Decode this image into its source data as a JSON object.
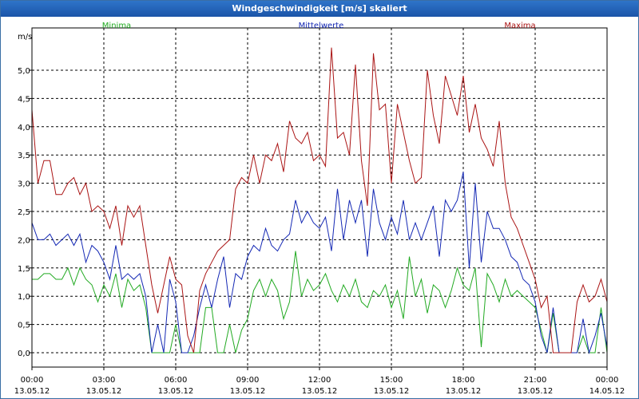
{
  "window": {
    "title": "Windgeschwindigkeit [m/s] skaliert"
  },
  "chart_data": {
    "type": "line",
    "title": "Windgeschwindigkeit [m/s] skaliert",
    "ylabel": "m/s",
    "xlabel": "",
    "ylim": [
      -0.25,
      5.9
    ],
    "xlim": [
      0,
      24
    ],
    "grid": true,
    "y_ticks": [
      {
        "v": 0,
        "label": "0,0"
      },
      {
        "v": 0.5,
        "label": "0,5"
      },
      {
        "v": 1,
        "label": "1,0"
      },
      {
        "v": 1.5,
        "label": "1,5"
      },
      {
        "v": 2,
        "label": "2,0"
      },
      {
        "v": 2.5,
        "label": "2,5"
      },
      {
        "v": 3,
        "label": "3,0"
      },
      {
        "v": 3.5,
        "label": "3,5"
      },
      {
        "v": 4,
        "label": "4,0"
      },
      {
        "v": 4.5,
        "label": "4,5"
      },
      {
        "v": 5,
        "label": "5,0"
      }
    ],
    "x_ticks": [
      {
        "h": 0,
        "time": "00:00",
        "date": "13.05.12"
      },
      {
        "h": 3,
        "time": "03:00",
        "date": "13.05.12"
      },
      {
        "h": 6,
        "time": "06:00",
        "date": "13.05.12"
      },
      {
        "h": 9,
        "time": "09:00",
        "date": "13.05.12"
      },
      {
        "h": 12,
        "time": "12:00",
        "date": "13.05.12"
      },
      {
        "h": 15,
        "time": "15:00",
        "date": "13.05.12"
      },
      {
        "h": 18,
        "time": "18:00",
        "date": "13.05.12"
      },
      {
        "h": 21,
        "time": "21:00",
        "date": "13.05.12"
      },
      {
        "h": 24,
        "time": "00:00",
        "date": "14.05.12"
      }
    ],
    "series": [
      {
        "name": "Minima",
        "color": "#22aa22",
        "points": [
          [
            0,
            1.3
          ],
          [
            0.25,
            1.3
          ],
          [
            0.5,
            1.4
          ],
          [
            0.75,
            1.4
          ],
          [
            1,
            1.3
          ],
          [
            1.25,
            1.3
          ],
          [
            1.5,
            1.5
          ],
          [
            1.75,
            1.2
          ],
          [
            2,
            1.5
          ],
          [
            2.25,
            1.3
          ],
          [
            2.5,
            1.2
          ],
          [
            2.75,
            0.9
          ],
          [
            3,
            1.2
          ],
          [
            3.25,
            1.0
          ],
          [
            3.5,
            1.4
          ],
          [
            3.75,
            0.8
          ],
          [
            4,
            1.3
          ],
          [
            4.25,
            1.1
          ],
          [
            4.5,
            1.2
          ],
          [
            4.75,
            0.8
          ],
          [
            5,
            0.0
          ],
          [
            5.25,
            0.0
          ],
          [
            5.5,
            0.0
          ],
          [
            5.75,
            0.0
          ],
          [
            6,
            0.5
          ],
          [
            6.25,
            0.0
          ],
          [
            6.5,
            0.0
          ],
          [
            6.75,
            0.0
          ],
          [
            7,
            0.0
          ],
          [
            7.25,
            0.8
          ],
          [
            7.5,
            0.8
          ],
          [
            7.75,
            0.0
          ],
          [
            8,
            0.0
          ],
          [
            8.25,
            0.5
          ],
          [
            8.5,
            0.0
          ],
          [
            8.75,
            0.4
          ],
          [
            9,
            0.6
          ],
          [
            9.25,
            1.1
          ],
          [
            9.5,
            1.3
          ],
          [
            9.75,
            1.0
          ],
          [
            10,
            1.3
          ],
          [
            10.25,
            1.1
          ],
          [
            10.5,
            0.6
          ],
          [
            10.75,
            0.9
          ],
          [
            11,
            1.8
          ],
          [
            11.25,
            1.0
          ],
          [
            11.5,
            1.3
          ],
          [
            11.75,
            1.1
          ],
          [
            12,
            1.2
          ],
          [
            12.25,
            1.4
          ],
          [
            12.5,
            1.1
          ],
          [
            12.75,
            0.9
          ],
          [
            13,
            1.2
          ],
          [
            13.25,
            1.0
          ],
          [
            13.5,
            1.3
          ],
          [
            13.75,
            0.9
          ],
          [
            14,
            0.8
          ],
          [
            14.25,
            1.1
          ],
          [
            14.5,
            1.0
          ],
          [
            14.75,
            1.2
          ],
          [
            15,
            0.8
          ],
          [
            15.25,
            1.1
          ],
          [
            15.5,
            0.6
          ],
          [
            15.75,
            1.7
          ],
          [
            16,
            1.0
          ],
          [
            16.25,
            1.3
          ],
          [
            16.5,
            0.7
          ],
          [
            16.75,
            1.2
          ],
          [
            17,
            1.1
          ],
          [
            17.25,
            0.8
          ],
          [
            17.5,
            1.1
          ],
          [
            17.75,
            1.5
          ],
          [
            18,
            1.2
          ],
          [
            18.25,
            1.1
          ],
          [
            18.5,
            1.5
          ],
          [
            18.75,
            0.1
          ],
          [
            19,
            1.4
          ],
          [
            19.25,
            1.2
          ],
          [
            19.5,
            0.9
          ],
          [
            19.75,
            1.3
          ],
          [
            20,
            1.0
          ],
          [
            20.25,
            1.1
          ],
          [
            20.5,
            1.0
          ],
          [
            20.75,
            0.9
          ],
          [
            21,
            0.8
          ],
          [
            21.25,
            0.4
          ],
          [
            21.5,
            0.0
          ],
          [
            21.75,
            0.7
          ],
          [
            22,
            0.0
          ],
          [
            22.25,
            0.0
          ],
          [
            22.5,
            0.0
          ],
          [
            22.75,
            0.0
          ],
          [
            23,
            0.3
          ],
          [
            23.25,
            0.0
          ],
          [
            23.5,
            0.0
          ],
          [
            23.75,
            0.8
          ],
          [
            24,
            0.0
          ]
        ]
      },
      {
        "name": "Mittelwerte",
        "color": "#1428b4",
        "points": [
          [
            0,
            2.3
          ],
          [
            0.25,
            2.0
          ],
          [
            0.5,
            2.0
          ],
          [
            0.75,
            2.1
          ],
          [
            1,
            1.9
          ],
          [
            1.25,
            2.0
          ],
          [
            1.5,
            2.1
          ],
          [
            1.75,
            1.9
          ],
          [
            2,
            2.1
          ],
          [
            2.25,
            1.6
          ],
          [
            2.5,
            1.9
          ],
          [
            2.75,
            1.8
          ],
          [
            3,
            1.6
          ],
          [
            3.25,
            1.3
          ],
          [
            3.5,
            1.9
          ],
          [
            3.75,
            1.3
          ],
          [
            4,
            1.4
          ],
          [
            4.25,
            1.3
          ],
          [
            4.5,
            1.4
          ],
          [
            4.75,
            1.0
          ],
          [
            5,
            0.0
          ],
          [
            5.25,
            0.5
          ],
          [
            5.5,
            0.0
          ],
          [
            5.75,
            1.3
          ],
          [
            6,
            0.9
          ],
          [
            6.25,
            0.0
          ],
          [
            6.5,
            0.0
          ],
          [
            6.75,
            0.3
          ],
          [
            7,
            0.8
          ],
          [
            7.25,
            1.2
          ],
          [
            7.5,
            0.8
          ],
          [
            7.75,
            1.3
          ],
          [
            8,
            1.7
          ],
          [
            8.25,
            0.8
          ],
          [
            8.5,
            1.4
          ],
          [
            8.75,
            1.3
          ],
          [
            9,
            1.7
          ],
          [
            9.25,
            1.9
          ],
          [
            9.5,
            1.8
          ],
          [
            9.75,
            2.2
          ],
          [
            10,
            1.9
          ],
          [
            10.25,
            1.8
          ],
          [
            10.5,
            2.0
          ],
          [
            10.75,
            2.1
          ],
          [
            11,
            2.7
          ],
          [
            11.25,
            2.3
          ],
          [
            11.5,
            2.5
          ],
          [
            11.75,
            2.3
          ],
          [
            12,
            2.2
          ],
          [
            12.25,
            2.4
          ],
          [
            12.5,
            1.8
          ],
          [
            12.75,
            2.9
          ],
          [
            13,
            2.0
          ],
          [
            13.25,
            2.7
          ],
          [
            13.5,
            2.3
          ],
          [
            13.75,
            2.7
          ],
          [
            14,
            1.7
          ],
          [
            14.25,
            2.9
          ],
          [
            14.5,
            2.3
          ],
          [
            14.75,
            2.0
          ],
          [
            15,
            2.4
          ],
          [
            15.25,
            2.1
          ],
          [
            15.5,
            2.7
          ],
          [
            15.75,
            2.0
          ],
          [
            16,
            2.3
          ],
          [
            16.25,
            2.0
          ],
          [
            16.5,
            2.3
          ],
          [
            16.75,
            2.6
          ],
          [
            17,
            1.7
          ],
          [
            17.25,
            2.7
          ],
          [
            17.5,
            2.5
          ],
          [
            17.75,
            2.7
          ],
          [
            18,
            3.2
          ],
          [
            18.25,
            1.5
          ],
          [
            18.5,
            3.0
          ],
          [
            18.75,
            1.6
          ],
          [
            19,
            2.5
          ],
          [
            19.25,
            2.2
          ],
          [
            19.5,
            2.2
          ],
          [
            19.75,
            2.0
          ],
          [
            20,
            1.7
          ],
          [
            20.25,
            1.6
          ],
          [
            20.5,
            1.3
          ],
          [
            20.75,
            1.2
          ],
          [
            21,
            0.9
          ],
          [
            21.25,
            0.3
          ],
          [
            21.5,
            0.0
          ],
          [
            21.75,
            0.8
          ],
          [
            22,
            0.0
          ],
          [
            22.25,
            0.0
          ],
          [
            22.5,
            0.0
          ],
          [
            22.75,
            0.0
          ],
          [
            23,
            0.6
          ],
          [
            23.25,
            0.0
          ],
          [
            23.5,
            0.3
          ],
          [
            23.75,
            0.7
          ],
          [
            24,
            0.1
          ]
        ]
      },
      {
        "name": "Maxima",
        "color": "#aa1414",
        "points": [
          [
            0,
            4.3
          ],
          [
            0.25,
            3.0
          ],
          [
            0.5,
            3.4
          ],
          [
            0.75,
            3.4
          ],
          [
            1,
            2.8
          ],
          [
            1.25,
            2.8
          ],
          [
            1.5,
            3.0
          ],
          [
            1.75,
            3.1
          ],
          [
            2,
            2.8
          ],
          [
            2.25,
            3.0
          ],
          [
            2.5,
            2.5
          ],
          [
            2.75,
            2.6
          ],
          [
            3,
            2.5
          ],
          [
            3.25,
            2.2
          ],
          [
            3.5,
            2.6
          ],
          [
            3.75,
            1.9
          ],
          [
            4,
            2.6
          ],
          [
            4.25,
            2.4
          ],
          [
            4.5,
            2.6
          ],
          [
            4.75,
            1.9
          ],
          [
            5,
            1.2
          ],
          [
            5.25,
            0.7
          ],
          [
            5.5,
            1.2
          ],
          [
            5.75,
            1.7
          ],
          [
            6,
            1.3
          ],
          [
            6.25,
            1.2
          ],
          [
            6.5,
            0.3
          ],
          [
            6.75,
            0.0
          ],
          [
            7,
            1.1
          ],
          [
            7.25,
            1.4
          ],
          [
            7.5,
            1.6
          ],
          [
            7.75,
            1.8
          ],
          [
            8,
            1.9
          ],
          [
            8.25,
            2.0
          ],
          [
            8.5,
            2.9
          ],
          [
            8.75,
            3.1
          ],
          [
            9,
            3.0
          ],
          [
            9.25,
            3.5
          ],
          [
            9.5,
            3.0
          ],
          [
            9.75,
            3.5
          ],
          [
            10,
            3.4
          ],
          [
            10.25,
            3.7
          ],
          [
            10.5,
            3.2
          ],
          [
            10.75,
            4.1
          ],
          [
            11,
            3.8
          ],
          [
            11.25,
            3.7
          ],
          [
            11.5,
            3.9
          ],
          [
            11.75,
            3.4
          ],
          [
            12,
            3.5
          ],
          [
            12.25,
            3.3
          ],
          [
            12.5,
            5.4
          ],
          [
            12.75,
            3.8
          ],
          [
            13,
            3.9
          ],
          [
            13.25,
            3.5
          ],
          [
            13.5,
            5.1
          ],
          [
            13.75,
            3.4
          ],
          [
            14,
            2.6
          ],
          [
            14.25,
            5.3
          ],
          [
            14.5,
            4.3
          ],
          [
            14.75,
            4.4
          ],
          [
            15,
            3.0
          ],
          [
            15.25,
            4.4
          ],
          [
            15.5,
            3.9
          ],
          [
            15.75,
            3.4
          ],
          [
            16,
            3.0
          ],
          [
            16.25,
            3.1
          ],
          [
            16.5,
            5.0
          ],
          [
            16.75,
            4.2
          ],
          [
            17,
            3.7
          ],
          [
            17.25,
            4.9
          ],
          [
            17.75,
            4.2
          ],
          [
            18,
            4.9
          ],
          [
            18.25,
            3.9
          ],
          [
            18.5,
            4.4
          ],
          [
            18.75,
            3.8
          ],
          [
            19,
            3.6
          ],
          [
            19.25,
            3.3
          ],
          [
            19.5,
            4.1
          ],
          [
            19.75,
            3.0
          ],
          [
            20,
            2.4
          ],
          [
            20.25,
            2.2
          ],
          [
            20.5,
            1.9
          ],
          [
            20.75,
            1.6
          ],
          [
            21,
            1.3
          ],
          [
            21.25,
            0.8
          ],
          [
            21.5,
            1.0
          ],
          [
            21.75,
            0.0
          ],
          [
            22,
            0.0
          ],
          [
            22.25,
            0.0
          ],
          [
            22.5,
            0.0
          ],
          [
            22.75,
            0.9
          ],
          [
            23,
            1.2
          ],
          [
            23.25,
            0.9
          ],
          [
            23.5,
            1.0
          ],
          [
            23.75,
            1.3
          ],
          [
            24,
            0.9
          ]
        ]
      }
    ]
  }
}
